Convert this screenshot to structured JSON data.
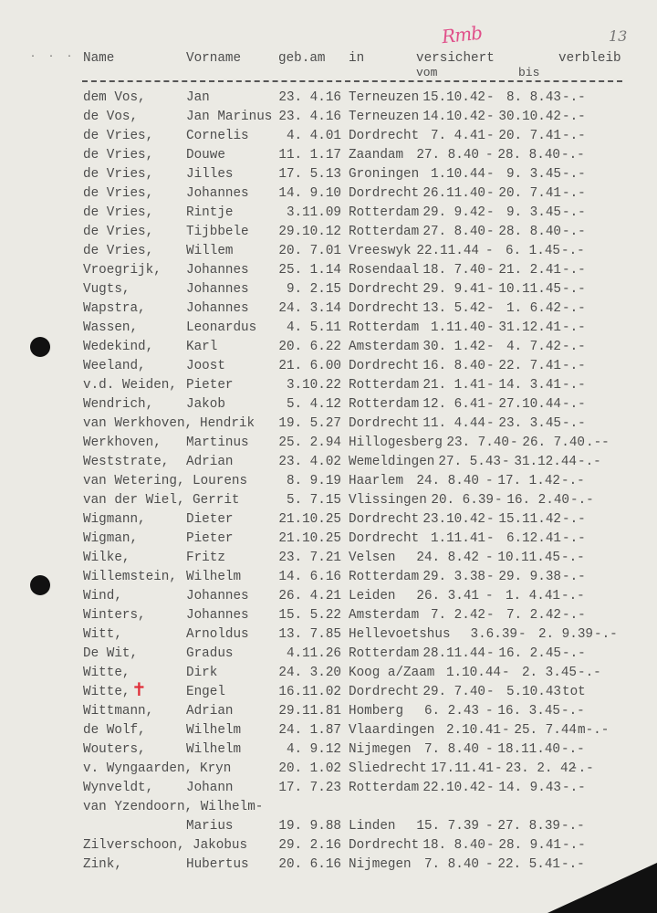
{
  "page": {
    "number": "13",
    "stamp": "Rmb",
    "ink": "#4d4d4d",
    "mark_color": "#e0303a"
  },
  "header": {
    "name": "Name",
    "vorname": "Vorname",
    "geb": "geb.am",
    "in": "in",
    "versichert": "versichert",
    "vom": "vom",
    "bis": "bis",
    "verbleib": "verbleib"
  },
  "rows": [
    {
      "name": "dem Vos,",
      "vorname": "Jan",
      "geb": "23. 4.16",
      "in": "Terneuzen",
      "vom": "15.10.42",
      "bis": "8. 8.43",
      "verbleib": "-.-"
    },
    {
      "name": "de Vos,",
      "vorname": "Jan Marinus",
      "geb": "23. 4.16",
      "in": "Terneuzen",
      "vom": "14.10.42",
      "bis": "30.10.42",
      "verbleib": "-.-"
    },
    {
      "name": "de Vries,",
      "vorname": "Cornelis",
      "geb": "4. 4.01",
      "in": "Dordrecht",
      "vom": "7. 4.41",
      "bis": "20. 7.41",
      "verbleib": "-.-"
    },
    {
      "name": "de Vries,",
      "vorname": "Douwe",
      "geb": "11. 1.17",
      "in": "Zaandam",
      "vom": "27. 8.40",
      "bis": "28. 8.40",
      "verbleib": "-.-"
    },
    {
      "name": "de Vries,",
      "vorname": "Jilles",
      "geb": "17. 5.13",
      "in": "Groningen",
      "vom": "1.10.44",
      "bis": "9. 3.45",
      "verbleib": "-.-"
    },
    {
      "name": "de Vries,",
      "vorname": "Johannes",
      "geb": "14. 9.10",
      "in": "Dordrecht",
      "vom": "26.11.40",
      "bis": "20. 7.41",
      "verbleib": "-.-"
    },
    {
      "name": "de Vries,",
      "vorname": "Rintje",
      "geb": "3.11.09",
      "in": "Rotterdam",
      "vom": "29. 9.42",
      "bis": "9. 3.45",
      "verbleib": "-.-"
    },
    {
      "name": "de Vries,",
      "vorname": "Tijbbele",
      "geb": "29.10.12",
      "in": "Rotterdam",
      "vom": "27. 8.40",
      "bis": "28. 8.40",
      "verbleib": "-.-"
    },
    {
      "name": "de Vries,",
      "vorname": "Willem",
      "geb": "20. 7.01",
      "in": "Vreeswyk",
      "vom": "22.11.44",
      "bis": "6. 1.45",
      "verbleib": "-.-"
    },
    {
      "name": "Vroegrijk,",
      "vorname": "Johannes",
      "geb": "25. 1.14",
      "in": "Rosendaal",
      "vom": "18. 7.40",
      "bis": "21. 2.41",
      "verbleib": "-.-"
    },
    {
      "name": "Vugts,",
      "vorname": "Johannes",
      "geb": "9. 2.15",
      "in": "Dordrecht",
      "vom": "29. 9.41",
      "bis": "10.11.45",
      "verbleib": "-.-"
    },
    {
      "name": "Wapstra,",
      "vorname": "Johannes",
      "geb": "24. 3.14",
      "in": "Dordrecht",
      "vom": "13. 5.42",
      "bis": "1. 6.42",
      "verbleib": "-.-"
    },
    {
      "name": "Wassen,",
      "vorname": "Leonardus",
      "geb": "4. 5.11",
      "in": "Rotterdam",
      "vom": "1.11.40",
      "bis": "31.12.41",
      "verbleib": "-.-"
    },
    {
      "name": "Wedekind,",
      "vorname": "Karl",
      "geb": "20. 6.22",
      "in": "Amsterdam",
      "vom": "30. 1.42",
      "bis": "4. 7.42",
      "verbleib": "-.-"
    },
    {
      "name": "Weeland,",
      "vorname": "Joost",
      "geb": "21. 6.00",
      "in": "Dordrecht",
      "vom": "16. 8.40",
      "bis": "22. 7.41",
      "verbleib": "-.-"
    },
    {
      "name": "v.d. Weiden,",
      "vorname": "Pieter",
      "geb": "3.10.22",
      "in": "Rotterdam",
      "vom": "21. 1.41",
      "bis": "14. 3.41",
      "verbleib": "-.-"
    },
    {
      "name": "Wendrich,",
      "vorname": "Jakob",
      "geb": "5. 4.12",
      "in": "Rotterdam",
      "vom": "12. 6.41",
      "bis": "27.10.44",
      "verbleib": "-.-"
    },
    {
      "name": "van Werkhoven,",
      "vorname": "Hendrik",
      "geb": "19. 5.27",
      "in": "Dordrecht",
      "vom": "11. 4.44",
      "bis": "23. 3.45",
      "verbleib": "-.-"
    },
    {
      "name": "Werkhoven,",
      "vorname": "Martinus",
      "geb": "25. 2.94",
      "in": "Hillogesberg",
      "vom": "23. 7.40",
      "bis": "26. 7.40",
      "verbleib": ".--"
    },
    {
      "name": "Weststrate,",
      "vorname": "Adrian",
      "geb": "23. 4.02",
      "in": "Wemeldingen",
      "vom": "27. 5.43",
      "bis": "31.12.44",
      "verbleib": "-.-"
    },
    {
      "name": "van Wetering,",
      "vorname": "Lourens",
      "geb": "8. 9.19",
      "in": "Haarlem",
      "vom": "24. 8.40",
      "bis": "17. 1.42",
      "verbleib": "-.-"
    },
    {
      "name": "van der Wiel,",
      "vorname": "Gerrit",
      "geb": "5. 7.15",
      "in": "Vlissingen",
      "vom": "20. 6.39",
      "bis": "16. 2.40",
      "verbleib": "-.-"
    },
    {
      "name": "Wigmann,",
      "vorname": "Dieter",
      "geb": "21.10.25",
      "in": "Dordrecht",
      "vom": "23.10.42",
      "bis": "15.11.42",
      "verbleib": "-.-"
    },
    {
      "name": "Wigman,",
      "vorname": "Pieter",
      "geb": "21.10.25",
      "in": "Dordrecht",
      "vom": "1.11.41",
      "bis": "6.12.41",
      "verbleib": "-.-"
    },
    {
      "name": "Wilke,",
      "vorname": "Fritz",
      "geb": "23. 7.21",
      "in": "Velsen",
      "vom": "24. 8.42",
      "bis": "10.11.45",
      "verbleib": "-.-"
    },
    {
      "name": "Willemstein,",
      "vorname": "Wilhelm",
      "geb": "14. 6.16",
      "in": "Rotterdam",
      "vom": "29. 3.38",
      "bis": "29. 9.38",
      "verbleib": "-.-"
    },
    {
      "name": "Wind,",
      "vorname": "Johannes",
      "geb": "26. 4.21",
      "in": "Leiden",
      "vom": "26. 3.41",
      "bis": "1. 4.41",
      "verbleib": "-.-"
    },
    {
      "name": "Winters,",
      "vorname": "Johannes",
      "geb": "15. 5.22",
      "in": "Amsterdam",
      "vom": "7. 2.42",
      "bis": "7. 2.42",
      "verbleib": "-.-"
    },
    {
      "name": "Witt,",
      "vorname": "Arnoldus",
      "geb": "13. 7.85",
      "in": "Hellevoetshus",
      "vom": "3.6.39",
      "bis": "2. 9.39",
      "verbleib": "-.-"
    },
    {
      "name": "De Wit,",
      "vorname": "Gradus",
      "geb": "4.11.26",
      "in": "Rotterdam",
      "vom": "28.11.44",
      "bis": "16. 2.45",
      "verbleib": "-.-"
    },
    {
      "name": "Witte,",
      "vorname": "Dirk",
      "geb": "24. 3.20",
      "in": "Koog a/Zaam",
      "vom": "1.10.44",
      "bis": "2. 3.45",
      "verbleib": "-.-"
    },
    {
      "name": "Witte,",
      "vorname": "Engel",
      "geb": "16.11.02",
      "in": "Dordrecht",
      "vom": "29. 7.40",
      "bis": "5.10.43",
      "verbleib": "tot",
      "mark": "cross-icon"
    },
    {
      "name": "Wittmann,",
      "vorname": "Adrian",
      "geb": "29.11.81",
      "in": "Homberg",
      "vom": "6. 2.43",
      "bis": "16. 3.45",
      "verbleib": "-.-"
    },
    {
      "name": "de Wolf,",
      "vorname": "Wilhelm",
      "geb": "24. 1.87",
      "in": "Vlaardingen",
      "vom": "2.10.41",
      "bis": "25. 7.44",
      "verbleib": "m-.-"
    },
    {
      "name": "Wouters,",
      "vorname": "Wilhelm",
      "geb": "4. 9.12",
      "in": "Nijmegen",
      "vom": "7. 8.40",
      "bis": "18.11.40",
      "verbleib": "-.-"
    },
    {
      "name": "v. Wyngaarden,",
      "vorname": "Kryn",
      "geb": "20. 1.02",
      "in": "Sliedrecht",
      "vom": "17.11.41",
      "bis": "23. 2. 42",
      "verbleib": "-.-"
    },
    {
      "name": "Wynveldt,",
      "vorname": "Johann",
      "geb": "17. 7.23",
      "in": "Rotterdam",
      "vom": "22.10.42",
      "bis": "14. 9.43",
      "verbleib": "-.-"
    },
    {
      "name": "van Yzendoorn,",
      "vorname": "Wilhelm-",
      "vorname2": "Marius",
      "geb": "19. 9.88",
      "in": "Linden",
      "vom": "15. 7.39",
      "bis": "27. 8.39",
      "verbleib": "-.-"
    },
    {
      "name": "Zilverschoon,",
      "vorname": "Jakobus",
      "geb": "29. 2.16",
      "in": "Dordrecht",
      "vom": "18. 8.40",
      "bis": "28. 9.41",
      "verbleib": "-.-"
    },
    {
      "name": "Zink,",
      "vorname": "Hubertus",
      "geb": "20. 6.16",
      "in": "Nijmegen",
      "vom": "7. 8.40",
      "bis": "22. 5.41",
      "verbleib": "-.-"
    }
  ]
}
